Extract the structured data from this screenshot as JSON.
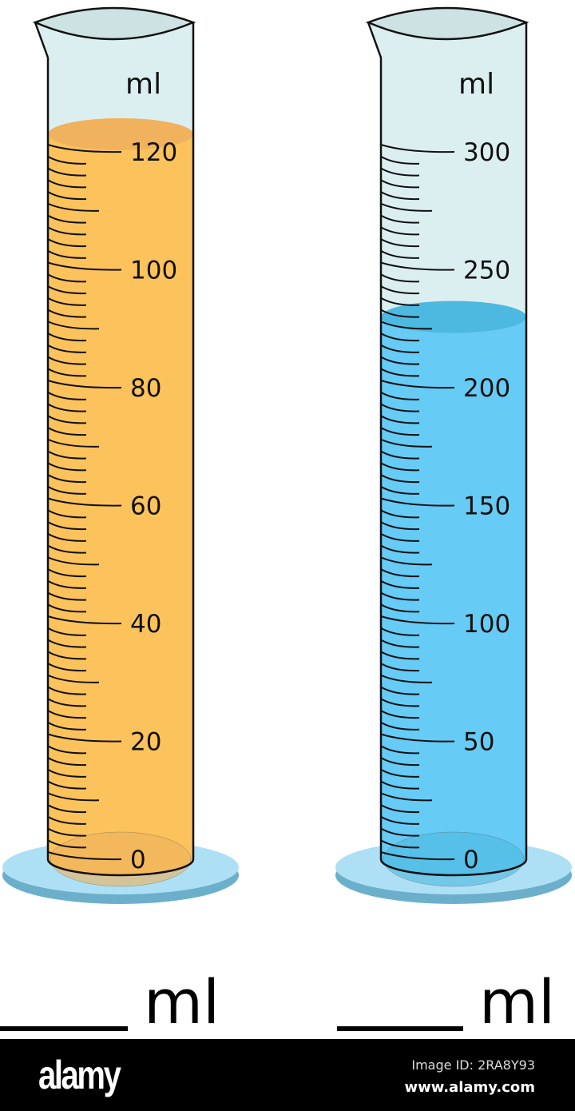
{
  "cylinders": [
    {
      "unit": "ml",
      "max": 120,
      "label_step": 20,
      "minor_step": 2,
      "medium_step": 10,
      "liquid_level_ml": 123,
      "liquid_color": "#fcc35d",
      "surface_color": "#f0b25c",
      "labels": [
        "0",
        "20",
        "40",
        "60",
        "80",
        "100",
        "120"
      ],
      "answer_unit": "ml"
    },
    {
      "unit": "ml",
      "max": 300,
      "label_step": 50,
      "minor_step": 5,
      "medium_step": 25,
      "liquid_level_ml": 230,
      "liquid_color": "#66cbf5",
      "surface_color": "#4db9e1",
      "labels": [
        "0",
        "50",
        "100",
        "150",
        "200",
        "250",
        "300"
      ],
      "answer_unit": "ml"
    }
  ],
  "colors": {
    "glass": "#dceff0",
    "base_top": "#aee0f5",
    "base_edge": "#6cafcb"
  },
  "footer": {
    "logo": "alamy",
    "image_id": "Image ID: 2RA8Y93",
    "site": "www.alamy.com"
  }
}
